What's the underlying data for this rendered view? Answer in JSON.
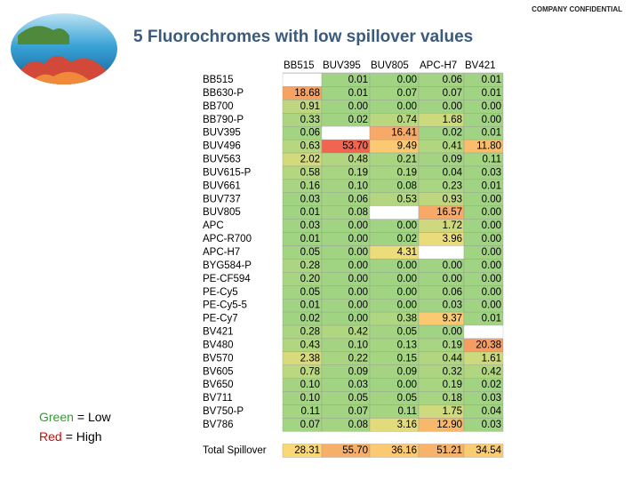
{
  "header": {
    "confidential": "COMPANY CONFIDENTIAL",
    "title": "5 Fluorochromes with low spillover values"
  },
  "legend": [
    {
      "word": "Green",
      "color": "#2e9e2e",
      "rest": "= Low"
    },
    {
      "word": "Red",
      "color": "#e00000",
      "rest": "= High"
    }
  ],
  "table": {
    "columns": [
      "BB515",
      "BUV395",
      "BUV805",
      "APC-H7",
      "BV421"
    ],
    "rows": [
      {
        "label": "BB515",
        "values": [
          null,
          0.01,
          0.0,
          0.06,
          0.01
        ]
      },
      {
        "label": "BB630-P",
        "values": [
          18.68,
          0.01,
          0.07,
          0.07,
          0.01
        ]
      },
      {
        "label": "BB700",
        "values": [
          0.91,
          0.0,
          0.0,
          0.0,
          0.0
        ]
      },
      {
        "label": "BB790-P",
        "values": [
          0.33,
          0.02,
          0.74,
          1.68,
          0.0
        ]
      },
      {
        "label": "BUV395",
        "values": [
          0.06,
          null,
          16.41,
          0.02,
          0.01
        ]
      },
      {
        "label": "BUV496",
        "values": [
          0.63,
          53.7,
          9.49,
          0.41,
          11.8
        ]
      },
      {
        "label": "BUV563",
        "values": [
          2.02,
          0.48,
          0.21,
          0.09,
          0.11
        ]
      },
      {
        "label": "BUV615-P",
        "values": [
          0.58,
          0.19,
          0.19,
          0.04,
          0.03
        ]
      },
      {
        "label": "BUV661",
        "values": [
          0.16,
          0.1,
          0.08,
          0.23,
          0.01
        ]
      },
      {
        "label": "BUV737",
        "values": [
          0.03,
          0.06,
          0.53,
          0.93,
          0.0
        ]
      },
      {
        "label": "BUV805",
        "values": [
          0.01,
          0.08,
          null,
          16.57,
          0.0
        ]
      },
      {
        "label": "APC",
        "values": [
          0.03,
          0.0,
          0.0,
          1.72,
          0.0
        ]
      },
      {
        "label": "APC-R700",
        "values": [
          0.01,
          0.0,
          0.02,
          3.96,
          0.0
        ]
      },
      {
        "label": "APC-H7",
        "values": [
          0.05,
          0.0,
          4.31,
          null,
          0.0
        ]
      },
      {
        "label": "BYG584-P",
        "values": [
          0.28,
          0.0,
          0.0,
          0.0,
          0.0
        ]
      },
      {
        "label": "PE-CF594",
        "values": [
          0.2,
          0.0,
          0.0,
          0.0,
          0.0
        ]
      },
      {
        "label": "PE-Cy5",
        "values": [
          0.05,
          0.0,
          0.0,
          0.06,
          0.0
        ]
      },
      {
        "label": "PE-Cy5-5",
        "values": [
          0.01,
          0.0,
          0.0,
          0.03,
          0.0
        ]
      },
      {
        "label": "PE-Cy7",
        "values": [
          0.02,
          0.0,
          0.38,
          9.37,
          0.01
        ]
      },
      {
        "label": "BV421",
        "values": [
          0.28,
          0.42,
          0.05,
          0.0,
          null
        ]
      },
      {
        "label": "BV480",
        "values": [
          0.43,
          0.1,
          0.13,
          0.19,
          20.38
        ]
      },
      {
        "label": "BV570",
        "values": [
          2.38,
          0.22,
          0.15,
          0.44,
          1.61
        ]
      },
      {
        "label": "BV605",
        "values": [
          0.78,
          0.09,
          0.09,
          0.32,
          0.42
        ]
      },
      {
        "label": "BV650",
        "values": [
          0.1,
          0.03,
          0.0,
          0.19,
          0.02
        ]
      },
      {
        "label": "BV711",
        "values": [
          0.1,
          0.05,
          0.05,
          0.18,
          0.03
        ]
      },
      {
        "label": "BV750-P",
        "values": [
          0.11,
          0.07,
          0.11,
          1.75,
          0.04
        ]
      },
      {
        "label": "BV786",
        "values": [
          0.07,
          0.08,
          3.16,
          12.9,
          0.03
        ]
      }
    ],
    "total": {
      "label": "Total Spillover",
      "values": [
        28.31,
        55.7,
        36.16,
        51.21,
        34.54
      ]
    }
  }
}
